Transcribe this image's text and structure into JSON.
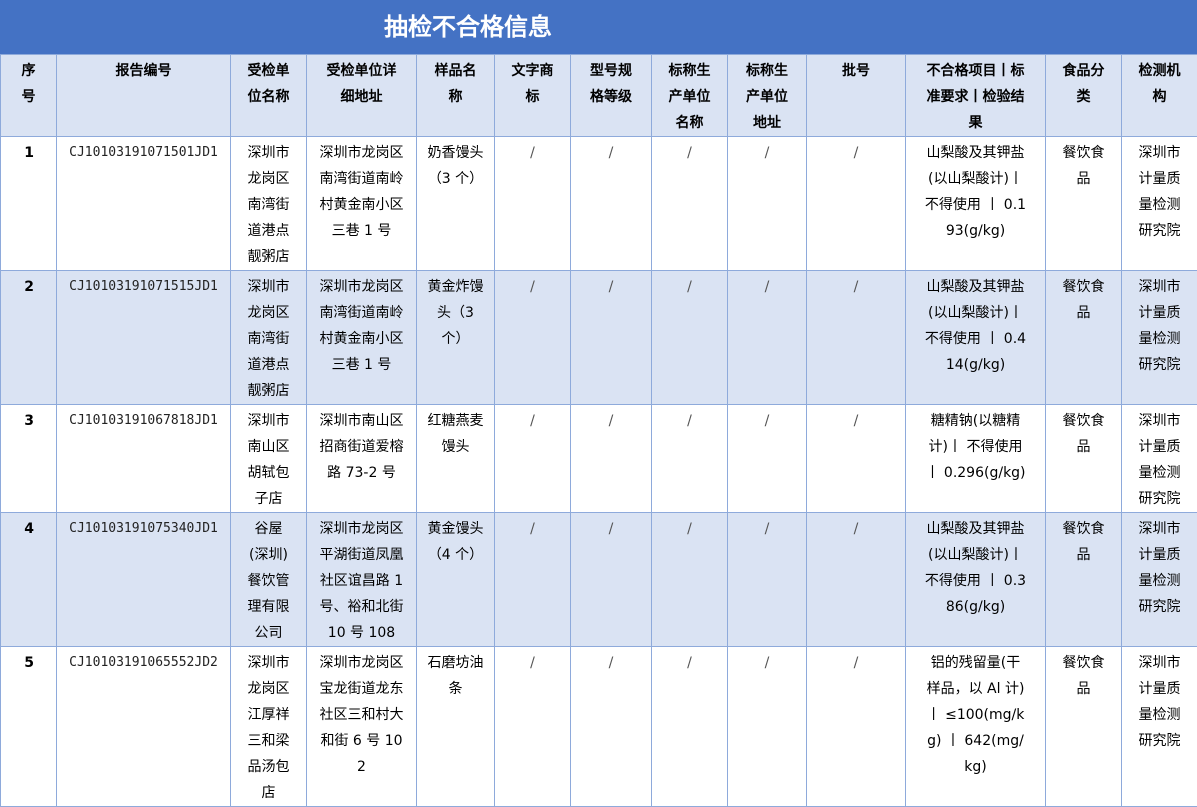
{
  "title": "抽检不合格信息",
  "colors": {
    "title_bg": "#4472c4",
    "header_bg": "#dae3f3",
    "border": "#8eaadb"
  },
  "headers": [
    "序号",
    "报告编号",
    "受检单位名称",
    "受检单位详细地址",
    "样品名称",
    "文字商标",
    "型号规格等级",
    "标称生产单位名称",
    "标称生产单位地址",
    "批号",
    "不合格项目丨标准要求丨检验结果",
    "食品分类",
    "检测机构"
  ],
  "rows": [
    {
      "no": "1",
      "report": "CJ10103191071501JD1",
      "unit": "深圳市龙岗区南湾街道港点靓粥店",
      "address": "深圳市龙岗区南湾街道南岭村黄金南小区三巷 1 号",
      "sample": "奶香馒头（3 个）",
      "brand": "/",
      "spec": "/",
      "mfr": "/",
      "mfr_addr": "/",
      "batch": "/",
      "result": "山梨酸及其钾盐(以山梨酸计)丨 不得使用 丨 0.193(g/kg)",
      "category": "餐饮食品",
      "lab": "深圳市计量质量检测研究院"
    },
    {
      "no": "2",
      "report": "CJ10103191071515JD1",
      "unit": "深圳市龙岗区南湾街道港点靓粥店",
      "address": "深圳市龙岗区南湾街道南岭村黄金南小区三巷 1 号",
      "sample": "黄金炸馒头（3 个）",
      "brand": "/",
      "spec": "/",
      "mfr": "/",
      "mfr_addr": "/",
      "batch": "/",
      "result": "山梨酸及其钾盐(以山梨酸计)丨 不得使用 丨 0.414(g/kg)",
      "category": "餐饮食品",
      "lab": "深圳市计量质量检测研究院"
    },
    {
      "no": "3",
      "report": "CJ10103191067818JD1",
      "unit": "深圳市南山区胡轼包子店",
      "address": "深圳市南山区招商街道爱榕路 73-2 号",
      "sample": "红糖燕麦馒头",
      "brand": "/",
      "spec": "/",
      "mfr": "/",
      "mfr_addr": "/",
      "batch": "/",
      "result": "糖精钠(以糖精计)丨 不得使用 丨 0.296(g/kg)",
      "category": "餐饮食品",
      "lab": "深圳市计量质量检测研究院"
    },
    {
      "no": "4",
      "report": "CJ10103191075340JD1",
      "unit": "谷屋(深圳)餐饮管理有限公司",
      "address": "深圳市龙岗区平湖街道凤凰社区谊昌路 1 号、裕和北街 10 号 108",
      "sample": "黄金馒头（4 个）",
      "brand": "/",
      "spec": "/",
      "mfr": "/",
      "mfr_addr": "/",
      "batch": "/",
      "result": "山梨酸及其钾盐(以山梨酸计)丨 不得使用 丨 0.386(g/kg)",
      "category": "餐饮食品",
      "lab": "深圳市计量质量检测研究院"
    },
    {
      "no": "5",
      "report": "CJ10103191065552JD2",
      "unit": "深圳市龙岗区江厚祥三和梁品汤包店",
      "address": "深圳市龙岗区宝龙街道龙东社区三和村大和街 6 号 102",
      "sample": "石磨坊油条",
      "brand": "/",
      "spec": "/",
      "mfr": "/",
      "mfr_addr": "/",
      "batch": "/",
      "result": "铝的残留量(干样品，以 Al 计)丨 ≤100(mg/kg) 丨 642(mg/kg)",
      "category": "餐饮食品",
      "lab": "深圳市计量质量检测研究院"
    }
  ]
}
